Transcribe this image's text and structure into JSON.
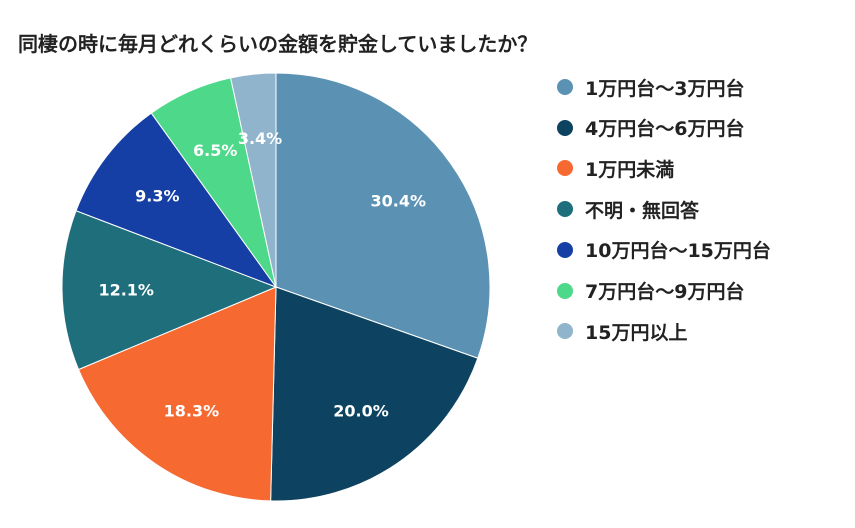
{
  "chart_data": {
    "type": "pie",
    "title": "同棲の時に毎月どれくらいの金額を貯金していましたか？",
    "legend_position": "right",
    "slices": [
      {
        "label": "1万円台〜3万円台",
        "value": 30.4,
        "display": "30.4%",
        "color": "#5b92b4"
      },
      {
        "label": "4万円台〜6万円台",
        "value": 20.0,
        "display": "20.0%",
        "color": "#0d4360"
      },
      {
        "label": "1万円未満",
        "value": 18.3,
        "display": "18.3%",
        "color": "#f66a32"
      },
      {
        "label": "不明・無回答",
        "value": 12.1,
        "display": "12.1%",
        "color": "#1e6f7b"
      },
      {
        "label": "10万円台〜15万円台",
        "value": 9.3,
        "display": "9.3%",
        "color": "#163fa6"
      },
      {
        "label": "7万円台〜9万円台",
        "value": 6.5,
        "display": "6.5%",
        "color": "#4ed98a"
      },
      {
        "label": "15万円以上",
        "value": 3.4,
        "display": "3.4%",
        "color": "#8fb4cb"
      }
    ]
  }
}
